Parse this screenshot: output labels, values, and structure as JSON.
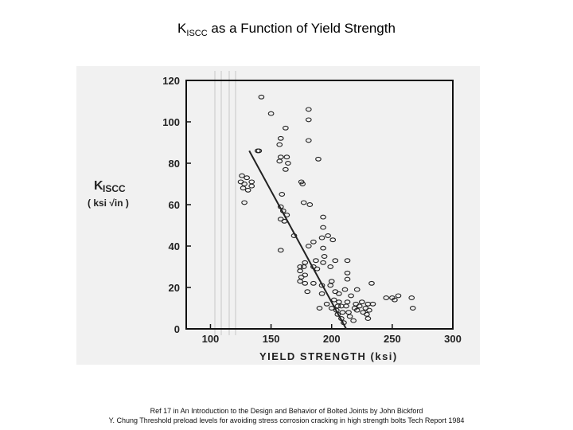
{
  "slide": {
    "title_main": "K",
    "title_sub": "ISCC",
    "title_rest": " as a Function of Yield Strength"
  },
  "footer": {
    "line1": "Ref 17 in An Introduction to the Design and Behavior of Bolted Joints by John Bickford",
    "line2": "Y. Chung Threshold preload levels for avoiding stress corrosion cracking in high strength bolts Tech Report 1984"
  },
  "colors": {
    "ink": "#222222",
    "panel": "#f1f1f1",
    "frame": "#111111"
  },
  "chart_data": {
    "type": "scatter",
    "title": "",
    "xlabel": "YIELD STRENGTH  (ksi)",
    "ylabel_main": "K",
    "ylabel_sub": "ISCC",
    "ylabel_units": "( ksi √in )",
    "xlim": [
      80,
      300
    ],
    "ylim": [
      0,
      120
    ],
    "xticks": [
      "100",
      "150",
      "200",
      "250",
      "300"
    ],
    "yticks": [
      "0",
      "20",
      "40",
      "60",
      "80",
      "100",
      "120"
    ],
    "grid": false,
    "trend_line": {
      "x": [
        132,
        212
      ],
      "y": [
        86,
        0
      ]
    },
    "points": [
      {
        "x": 142,
        "y": 112
      },
      {
        "x": 150,
        "y": 104
      },
      {
        "x": 158,
        "y": 92
      },
      {
        "x": 157,
        "y": 89
      },
      {
        "x": 162,
        "y": 97
      },
      {
        "x": 181,
        "y": 106
      },
      {
        "x": 181,
        "y": 101
      },
      {
        "x": 181,
        "y": 91
      },
      {
        "x": 189,
        "y": 82
      },
      {
        "x": 139,
        "y": 86
      },
      {
        "x": 140,
        "y": 86
      },
      {
        "x": 126,
        "y": 74
      },
      {
        "x": 130,
        "y": 73
      },
      {
        "x": 134,
        "y": 71
      },
      {
        "x": 125,
        "y": 71
      },
      {
        "x": 128,
        "y": 70
      },
      {
        "x": 134,
        "y": 69
      },
      {
        "x": 127,
        "y": 68
      },
      {
        "x": 131,
        "y": 67
      },
      {
        "x": 128,
        "y": 61
      },
      {
        "x": 158,
        "y": 83
      },
      {
        "x": 157,
        "y": 81
      },
      {
        "x": 163,
        "y": 83
      },
      {
        "x": 164,
        "y": 80
      },
      {
        "x": 162,
        "y": 77
      },
      {
        "x": 175,
        "y": 71
      },
      {
        "x": 176,
        "y": 70
      },
      {
        "x": 159,
        "y": 65
      },
      {
        "x": 158,
        "y": 59
      },
      {
        "x": 160,
        "y": 57
      },
      {
        "x": 163,
        "y": 55
      },
      {
        "x": 158,
        "y": 53
      },
      {
        "x": 161,
        "y": 52
      },
      {
        "x": 177,
        "y": 61
      },
      {
        "x": 182,
        "y": 60
      },
      {
        "x": 169,
        "y": 45
      },
      {
        "x": 158,
        "y": 38
      },
      {
        "x": 193,
        "y": 54
      },
      {
        "x": 193,
        "y": 49
      },
      {
        "x": 192,
        "y": 44
      },
      {
        "x": 197,
        "y": 45
      },
      {
        "x": 201,
        "y": 43
      },
      {
        "x": 181,
        "y": 40
      },
      {
        "x": 185,
        "y": 42
      },
      {
        "x": 193,
        "y": 39
      },
      {
        "x": 194,
        "y": 35
      },
      {
        "x": 187,
        "y": 33
      },
      {
        "x": 193,
        "y": 32
      },
      {
        "x": 178,
        "y": 32
      },
      {
        "x": 174,
        "y": 30
      },
      {
        "x": 177,
        "y": 30
      },
      {
        "x": 174,
        "y": 28
      },
      {
        "x": 185,
        "y": 30
      },
      {
        "x": 188,
        "y": 29
      },
      {
        "x": 199,
        "y": 30
      },
      {
        "x": 203,
        "y": 33
      },
      {
        "x": 213,
        "y": 33
      },
      {
        "x": 213,
        "y": 27
      },
      {
        "x": 175,
        "y": 25
      },
      {
        "x": 178,
        "y": 26
      },
      {
        "x": 174,
        "y": 23
      },
      {
        "x": 178,
        "y": 22
      },
      {
        "x": 185,
        "y": 22
      },
      {
        "x": 192,
        "y": 21
      },
      {
        "x": 200,
        "y": 23
      },
      {
        "x": 213,
        "y": 24
      },
      {
        "x": 199,
        "y": 21
      },
      {
        "x": 211,
        "y": 19
      },
      {
        "x": 221,
        "y": 19
      },
      {
        "x": 233,
        "y": 22
      },
      {
        "x": 180,
        "y": 18
      },
      {
        "x": 192,
        "y": 17
      },
      {
        "x": 203,
        "y": 18
      },
      {
        "x": 206,
        "y": 17
      },
      {
        "x": 216,
        "y": 16
      },
      {
        "x": 202,
        "y": 14
      },
      {
        "x": 206,
        "y": 13
      },
      {
        "x": 213,
        "y": 13
      },
      {
        "x": 220,
        "y": 12
      },
      {
        "x": 225,
        "y": 13
      },
      {
        "x": 230,
        "y": 12
      },
      {
        "x": 234,
        "y": 12
      },
      {
        "x": 205,
        "y": 11
      },
      {
        "x": 208,
        "y": 11
      },
      {
        "x": 212,
        "y": 11
      },
      {
        "x": 219,
        "y": 10
      },
      {
        "x": 223,
        "y": 11
      },
      {
        "x": 228,
        "y": 10
      },
      {
        "x": 231,
        "y": 9
      },
      {
        "x": 245,
        "y": 15
      },
      {
        "x": 252,
        "y": 14
      },
      {
        "x": 255,
        "y": 16
      },
      {
        "x": 266,
        "y": 15
      },
      {
        "x": 200,
        "y": 10
      },
      {
        "x": 204,
        "y": 9
      },
      {
        "x": 209,
        "y": 8
      },
      {
        "x": 214,
        "y": 8
      },
      {
        "x": 221,
        "y": 9
      },
      {
        "x": 226,
        "y": 8
      },
      {
        "x": 229,
        "y": 7
      },
      {
        "x": 205,
        "y": 7
      },
      {
        "x": 208,
        "y": 5
      },
      {
        "x": 230,
        "y": 5
      },
      {
        "x": 210,
        "y": 3
      },
      {
        "x": 218,
        "y": 4
      },
      {
        "x": 267,
        "y": 10
      },
      {
        "x": 250,
        "y": 15
      },
      {
        "x": 215,
        "y": 6
      },
      {
        "x": 190,
        "y": 10
      },
      {
        "x": 196,
        "y": 12
      }
    ]
  }
}
